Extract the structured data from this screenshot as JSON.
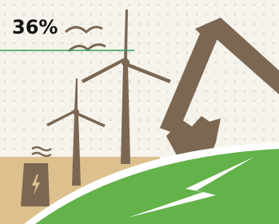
{
  "stat": {
    "value": "36%"
  }
}
